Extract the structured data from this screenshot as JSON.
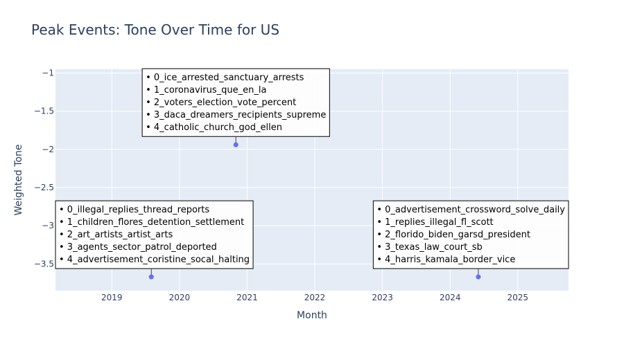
{
  "chart_data": {
    "type": "scatter",
    "title": "Peak Events: Tone Over Time for US",
    "xlabel": "Month",
    "ylabel": "Weighted Tone",
    "x_ticks": [
      "2019",
      "2020",
      "2021",
      "2022",
      "2023",
      "2024",
      "2025"
    ],
    "y_ticks": [
      "−1",
      "−1.5",
      "−2",
      "−2.5",
      "−3",
      "−3.5"
    ],
    "y_tick_values": [
      -1,
      -1.5,
      -2,
      -2.5,
      -3,
      -3.5
    ],
    "ylim": [
      -3.85,
      -0.95
    ],
    "xlim": [
      "2018-03",
      "2025-10"
    ],
    "grid": true,
    "marker_color": "#636efa",
    "points": [
      {
        "x": "2019-08",
        "y": -3.67,
        "annotation": [
          "• 0_illegal_replies_thread_reports",
          "• 1_children_flores_detention_settlement",
          "• 2_art_artists_artist_arts",
          "• 3_agents_sector_patrol_deported",
          "• 4_advertisement_coristine_socal_halting"
        ]
      },
      {
        "x": "2020-11",
        "y": -1.94,
        "annotation": [
          "• 0_ice_arrested_sanctuary_arrests",
          "• 1_coronavirus_que_en_la",
          "• 2_voters_election_vote_percent",
          "• 3_daca_dreamers_recipients_supreme",
          "• 4_catholic_church_god_ellen"
        ]
      },
      {
        "x": "2024-06",
        "y": -3.67,
        "annotation": [
          "• 0_advertisement_crossword_solve_daily",
          "• 1_replies_illegal_fl_scott",
          "• 2_florido_biden_garsd_president",
          "• 3_texas_law_court_sb",
          "• 4_harris_kamala_border_vice"
        ]
      }
    ]
  }
}
